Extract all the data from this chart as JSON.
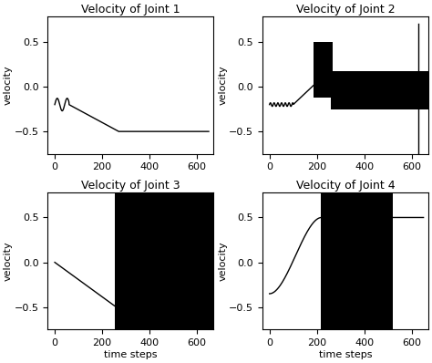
{
  "titles": [
    "Velocity of Joint 1",
    "Velocity of Joint 2",
    "Velocity of Joint 3",
    "Velocity of Joint 4"
  ],
  "xlabel_bottom": "time steps",
  "ylabel": "velocity",
  "xlim": [
    -30,
    670
  ],
  "ylim": [
    -0.75,
    0.78
  ],
  "yticks": [
    -0.5,
    0,
    0.5
  ],
  "xticks": [
    0,
    200,
    400,
    600
  ],
  "figsize": [
    4.74,
    3.98
  ],
  "dpi": 100,
  "background_color": "#ffffff",
  "line_color": "#000000",
  "black_region_color": "#000000",
  "title_fontsize": 9,
  "label_fontsize": 8,
  "tick_fontsize": 8
}
